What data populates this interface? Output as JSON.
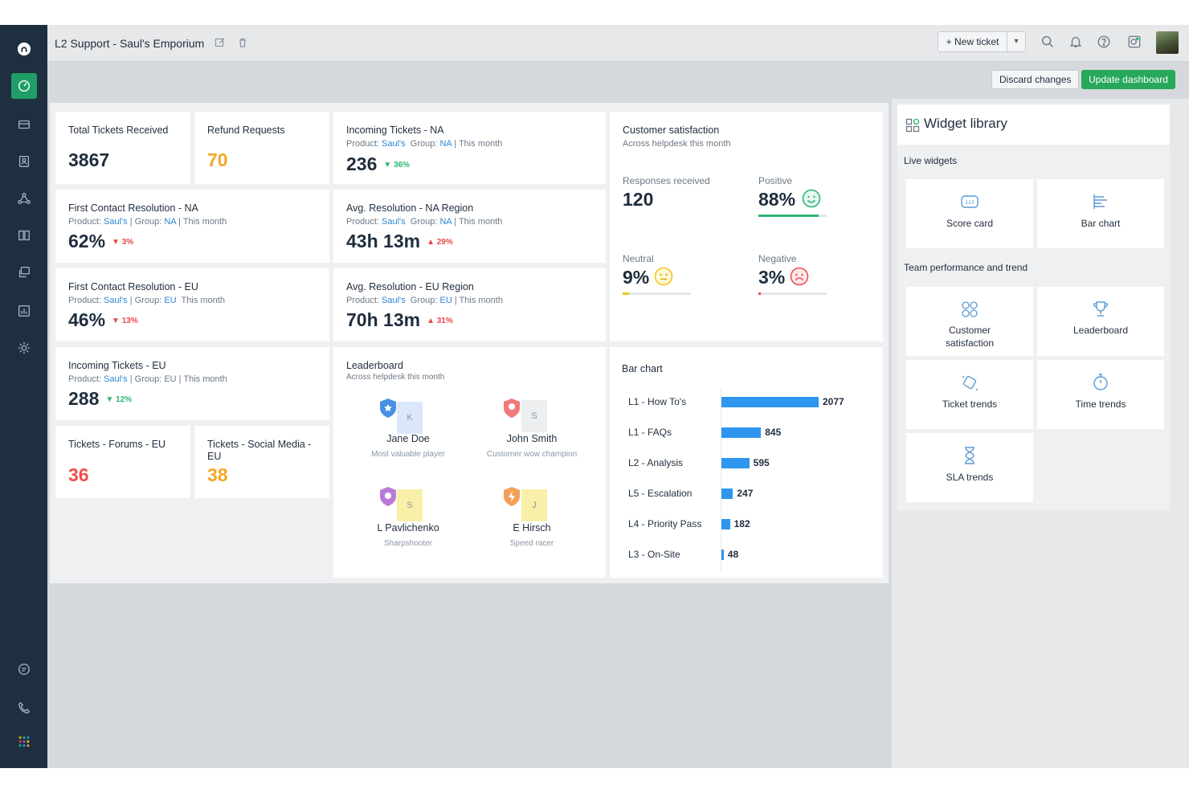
{
  "header": {
    "title": "L2 Support - Saul's Emporium",
    "new_ticket": "+ New ticket"
  },
  "actions": {
    "discard": "Discard changes",
    "update": "Update dashboard"
  },
  "widgets": {
    "total_tickets": {
      "title": "Total Tickets Received",
      "value": "3867"
    },
    "refund_requests": {
      "title": "Refund Requests",
      "value": "70"
    },
    "incoming_na": {
      "title": "Incoming Tickets - NA",
      "product_label": "Product:",
      "product": "Saul's",
      "group_label": "Group:",
      "group": "NA",
      "period": "This month",
      "value": "236",
      "delta": "36%"
    },
    "fcr_na": {
      "title": "First Contact Resolution - NA",
      "product_label": "Product:",
      "product": "Saul's",
      "group_label": "Group:",
      "group": "NA",
      "period": "This month",
      "value": "62%",
      "delta": "3%"
    },
    "avg_res_na": {
      "title": "Avg. Resolution - NA Region",
      "product_label": "Product:",
      "product": "Saul's",
      "group_label": "Group:",
      "group": "NA",
      "period": "This month",
      "value": "43h 13m",
      "delta": "29%"
    },
    "fcr_eu": {
      "title": "First Contact Resolution - EU",
      "product_label": "Product:",
      "product": "Saul's",
      "group_label": "Group:",
      "group": "EU",
      "period": "This month",
      "value": "46%",
      "delta": "13%"
    },
    "avg_res_eu": {
      "title": "Avg. Resolution - EU Region",
      "product_label": "Product:",
      "product": "Saul's",
      "group_label": "Group:",
      "group": "EU",
      "period": "This month",
      "value": "70h 13m",
      "delta": "31%"
    },
    "incoming_eu": {
      "title": "Incoming Tickets - EU",
      "product_label": "Product:",
      "product": "Saul's",
      "group_label": "Group:",
      "group": "EU",
      "period": "This month",
      "value": "288",
      "delta": "12%"
    },
    "forums_eu": {
      "title": "Tickets - Forums - EU",
      "value": "36"
    },
    "social_eu": {
      "title": "Tickets - Social Media - EU",
      "value": "38"
    }
  },
  "csat": {
    "title": "Customer satisfaction",
    "subtitle": "Across helpdesk this month",
    "responses_label": "Responses received",
    "responses": "120",
    "positive_label": "Positive",
    "positive": "88%",
    "positive_fraction": 0.88,
    "neutral_label": "Neutral",
    "neutral": "9%",
    "neutral_fraction": 0.09,
    "negative_label": "Negative",
    "negative": "3%",
    "negative_fraction": 0.03,
    "colors": {
      "positive": "#2bb673",
      "neutral": "#f5c518",
      "negative": "#f04e4e"
    }
  },
  "leaderboard": {
    "title": "Leaderboard",
    "subtitle": "Across helpdesk this month",
    "people": [
      {
        "name": "Jane Doe",
        "role": "Most valuable player",
        "initial": "K"
      },
      {
        "name": "John Smith",
        "role": "Customer wow champion",
        "initial": "S"
      },
      {
        "name": "L Pavlichenko",
        "role": "Sharpshooter",
        "initial": "S"
      },
      {
        "name": "E Hirsch",
        "role": "Speed racer",
        "initial": "J"
      }
    ]
  },
  "chart_data": {
    "type": "bar",
    "title": "Bar chart",
    "orientation": "horizontal",
    "categories": [
      "L1 - How To's",
      "L1 - FAQs",
      "L2 - Analysis",
      "L5 - Escalation",
      "L4 - Priority Pass",
      "L3 - On-Site"
    ],
    "values": [
      2077,
      845,
      595,
      247,
      182,
      48
    ],
    "color": "#2f96ef"
  },
  "library": {
    "title": "Widget library",
    "live_section": "Live widgets",
    "team_section": "Team performance and trend",
    "tiles": {
      "score_card": "Score card",
      "bar_chart": "Bar chart",
      "csat_line1": "Customer",
      "csat_line2": "satisfaction",
      "leaderboard": "Leaderboard",
      "ticket_trends": "Ticket trends",
      "time_trends": "Time trends",
      "sla_trends": "SLA trends"
    }
  }
}
